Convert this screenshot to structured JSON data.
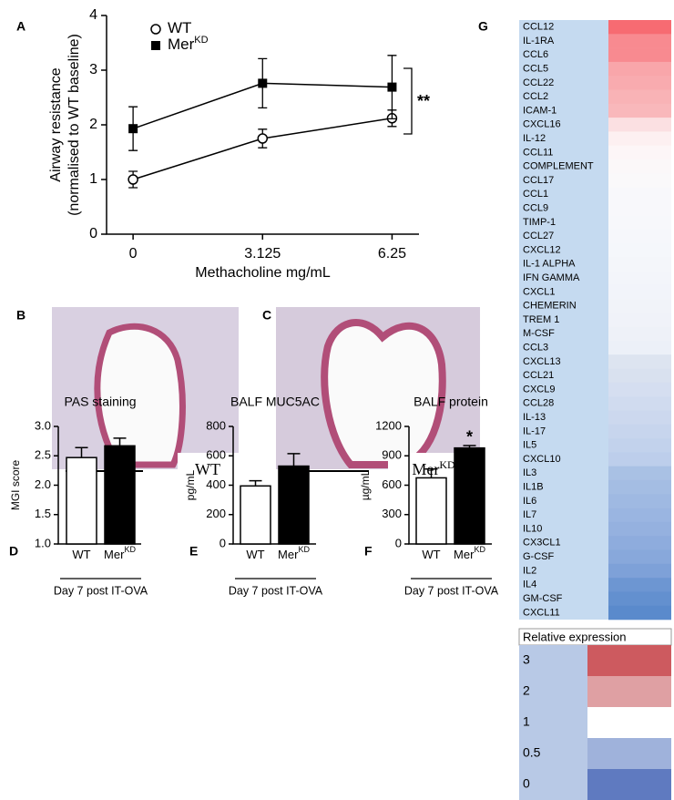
{
  "chart_data": [
    {
      "type": "line",
      "letter": "A",
      "ylabel": [
        "Airway resistance",
        "(normalised to WT baseline)"
      ],
      "xlabel": "Methacholine mg/mL",
      "x": [
        0,
        3.125,
        6.25
      ],
      "xlim": [
        -0.64,
        6.9
      ],
      "xticks": [
        0,
        3.125,
        6.25
      ],
      "ylim": [
        0,
        4
      ],
      "yticks": [
        0,
        1,
        2,
        3,
        4
      ],
      "series": [
        {
          "name": "WT",
          "marker": "circle-open",
          "color": "#000000",
          "values": [
            1.0,
            1.75,
            2.12
          ],
          "errors": [
            0.15,
            0.17,
            0.15
          ]
        },
        {
          "name": "Mer",
          "name_sup": "KD",
          "marker": "square",
          "color": "#000000",
          "values": [
            1.93,
            2.76,
            2.69
          ],
          "errors": [
            0.4,
            0.45,
            0.58
          ]
        }
      ],
      "significance": "**"
    },
    {
      "type": "bar",
      "letter": "D",
      "title": "PAS staining",
      "ylabel": "MGI score",
      "xlabel": "Day 7 post IT-OVA",
      "categories": [
        "WT",
        "Mer"
      ],
      "category_superscripts": {
        "1": "KD"
      },
      "fills": [
        "#ffffff",
        "#000000"
      ],
      "values": [
        2.47,
        2.67
      ],
      "errors": [
        0.17,
        0.13
      ],
      "ylim": [
        1,
        3
      ],
      "yticks": [
        {
          "value": 1,
          "label": "1.0"
        },
        {
          "value": 1.5,
          "label": "1.5"
        },
        {
          "value": 2,
          "label": "2.0"
        },
        {
          "value": 2.5,
          "label": "2.5"
        },
        {
          "value": 3,
          "label": "3.0"
        }
      ]
    },
    {
      "type": "bar",
      "letter": "E",
      "title": "BALF MUC5AC",
      "ylabel": "pg/mL",
      "xlabel": "Day 7 post IT-OVA",
      "categories": [
        "WT",
        "Mer"
      ],
      "category_superscripts": {
        "1": "KD"
      },
      "fills": [
        "#ffffff",
        "#000000"
      ],
      "values": [
        395,
        530
      ],
      "errors": [
        35,
        85
      ],
      "ylim": [
        0,
        800
      ],
      "yticks": [
        0,
        200,
        400,
        600,
        800
      ]
    },
    {
      "type": "bar",
      "letter": "F",
      "title": "BALF protein",
      "ylabel": "µg/mL",
      "xlabel": "Day 7 post IT-OVA",
      "categories": [
        "WT",
        "Mer"
      ],
      "category_superscripts": {
        "1": "KD"
      },
      "fills": [
        "#ffffff",
        "#000000"
      ],
      "values": [
        675,
        980
      ],
      "errors": [
        90,
        25
      ],
      "ylim": [
        0,
        1200
      ],
      "yticks": [
        0,
        300,
        600,
        900,
        1200
      ],
      "significance": {
        "1": "*"
      }
    },
    {
      "type": "heatmap",
      "letter": "G",
      "rows": [
        "CCL12",
        "IL-1RA",
        "CCL6",
        "CCL5",
        "CCL22",
        "CCL2",
        "ICAM-1",
        "CXCL16",
        "IL-12",
        "CCL11",
        "COMPLEMENT",
        "CCL17",
        "CCL1",
        "CCL9",
        "TIMP-1",
        "CCL27",
        "CXCL12",
        "IL-1 ALPHA",
        "IFN GAMMA",
        "CXCL1",
        "CHEMERIN",
        "TREM 1",
        "M-CSF",
        "CCL3",
        "CXCL13",
        "CCL21",
        "CXCL9",
        "CCL28",
        "IL-13",
        "IL-17",
        "IL5",
        "CXCL10",
        "IL3",
        "IL1B",
        "IL6",
        "IL7",
        "IL10",
        "CX3CL1",
        "G-CSF",
        "IL2",
        "IL4",
        "GM-CSF",
        "CXCL11"
      ],
      "colors": [
        "#f76b72",
        "#f88a90",
        "#f88a90",
        "#f9a6aa",
        "#f9abaf",
        "#f9b3b6",
        "#f9b8bb",
        "#fbe0e2",
        "#fdf0f1",
        "#fdf6f7",
        "#fbf8f9",
        "#faf9fa",
        "#f8f8fb",
        "#f8f8fb",
        "#f7f8fb",
        "#f6f7fb",
        "#f5f7fb",
        "#f4f6fa",
        "#f3f5fa",
        "#f2f4fa",
        "#f1f3f9",
        "#f0f2f9",
        "#eef1f8",
        "#ecf0f8",
        "#dde4f0",
        "#d9e1ef",
        "#d5def0",
        "#d0dbef",
        "#ccd8ee",
        "#c7d5ed",
        "#c2d2ec",
        "#bdceeb",
        "#a9c1e4",
        "#a4bde3",
        "#9fb9e2",
        "#9ab5e1",
        "#95b1df",
        "#8eacdd",
        "#88a8db",
        "#7ea1d8",
        "#6d96d2",
        "#6390cf",
        "#5a8acc"
      ],
      "legend": {
        "title": "Relative expression",
        "values": [
          3,
          2,
          1,
          0.5,
          0
        ],
        "colors": [
          "#cd5a5f",
          "#dfa0a3",
          "#ffffff",
          "#9fb2db",
          "#5f7ac0"
        ]
      }
    }
  ],
  "images": [
    {
      "letter": "B",
      "label": "WT"
    },
    {
      "letter": "C",
      "label": "Mer",
      "label_sup": "KD"
    }
  ]
}
